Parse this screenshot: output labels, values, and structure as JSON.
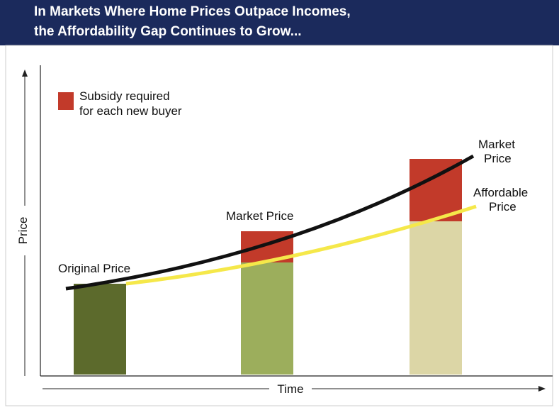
{
  "header": {
    "title_lines": [
      "In Markets Where Home Prices Outpace Incomes,",
      "the Affordability Gap Continues to Grow..."
    ]
  },
  "legend": {
    "lines": [
      "Subsidy required",
      "for each new buyer"
    ]
  },
  "axes": {
    "y_label": "Price",
    "x_label": "Time"
  },
  "labels": {
    "original": "Original Price",
    "middle": "Market Price",
    "market_curve": [
      "Market",
      "Price"
    ],
    "affordable_curve": [
      "Affordable",
      "Price"
    ]
  }
}
